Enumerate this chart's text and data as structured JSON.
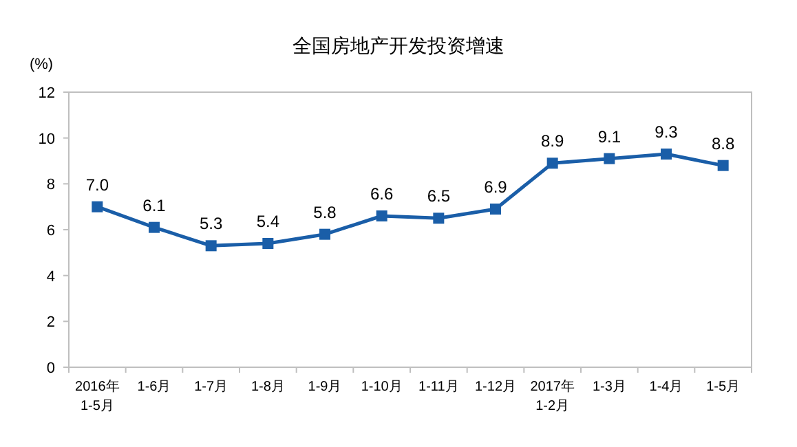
{
  "chart_data": {
    "type": "line",
    "title": "全国房地产开发投资增速",
    "ylabel": "(%)",
    "categories": [
      "2016年\n1-5月",
      "1-6月",
      "1-7月",
      "1-8月",
      "1-9月",
      "1-10月",
      "1-11月",
      "1-12月",
      "2017年\n1-2月",
      "1-3月",
      "1-4月",
      "1-5月"
    ],
    "series": [
      {
        "color": "#1a5ea8",
        "values": [
          7.0,
          6.1,
          5.3,
          5.4,
          5.8,
          6.6,
          6.5,
          6.9,
          8.9,
          9.1,
          9.3,
          8.8
        ],
        "value_labels": [
          "7.0",
          "6.1",
          "5.3",
          "5.4",
          "5.8",
          "6.6",
          "6.5",
          "6.9",
          "8.9",
          "9.1",
          "9.3",
          "8.8"
        ]
      }
    ],
    "ylim": [
      0,
      12
    ],
    "yticks": [
      0,
      2,
      4,
      6,
      8,
      10,
      12
    ],
    "marker": "square",
    "grid": false
  }
}
